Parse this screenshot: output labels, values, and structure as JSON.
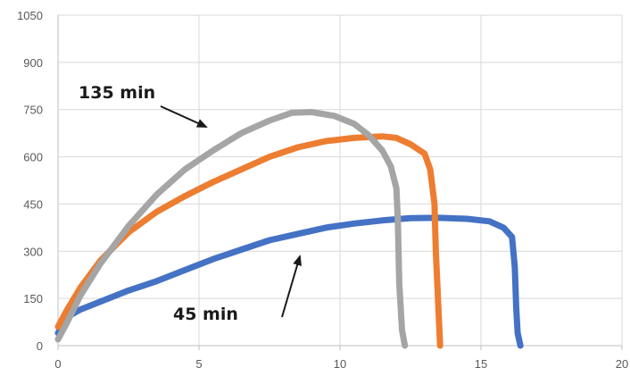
{
  "chart_data": {
    "type": "line",
    "title": "",
    "xlabel": "",
    "ylabel": "",
    "xlim": [
      0,
      20
    ],
    "ylim": [
      0,
      1050
    ],
    "x_ticks": [
      "0",
      "5",
      "10",
      "15",
      "20"
    ],
    "y_ticks": [
      "0",
      "150",
      "300",
      "450",
      "600",
      "750",
      "900",
      "1050"
    ],
    "grid": "vertical and horizontal",
    "legend": "none",
    "series": [
      {
        "color": "#4472c4",
        "points": [
          [
            0,
            40
          ],
          [
            0.3,
            90
          ],
          [
            0.8,
            115
          ],
          [
            1.5,
            140
          ],
          [
            2.5,
            175
          ],
          [
            3.5,
            205
          ],
          [
            4.5,
            240
          ],
          [
            5.5,
            275
          ],
          [
            6.5,
            305
          ],
          [
            7.5,
            335
          ],
          [
            8.5,
            355
          ],
          [
            9.5,
            375
          ],
          [
            10.5,
            388
          ],
          [
            11.5,
            398
          ],
          [
            12.5,
            405
          ],
          [
            13.5,
            406
          ],
          [
            14.5,
            403
          ],
          [
            15.3,
            395
          ],
          [
            15.8,
            375
          ],
          [
            16.1,
            345
          ],
          [
            16.2,
            250
          ],
          [
            16.25,
            120
          ],
          [
            16.3,
            40
          ],
          [
            16.4,
            0
          ]
        ]
      },
      {
        "color": "#ed7d31",
        "points": [
          [
            0,
            60
          ],
          [
            0.3,
            110
          ],
          [
            0.8,
            185
          ],
          [
            1.5,
            270
          ],
          [
            2.5,
            360
          ],
          [
            3.5,
            425
          ],
          [
            4.5,
            475
          ],
          [
            5.5,
            520
          ],
          [
            6.5,
            560
          ],
          [
            7.5,
            600
          ],
          [
            8.5,
            630
          ],
          [
            9.5,
            650
          ],
          [
            10.5,
            660
          ],
          [
            11.5,
            665
          ],
          [
            12,
            660
          ],
          [
            12.5,
            640
          ],
          [
            13,
            610
          ],
          [
            13.2,
            560
          ],
          [
            13.35,
            450
          ],
          [
            13.4,
            300
          ],
          [
            13.5,
            100
          ],
          [
            13.55,
            0
          ]
        ]
      },
      {
        "color": "#a5a5a5",
        "points": [
          [
            0,
            20
          ],
          [
            0.3,
            70
          ],
          [
            0.8,
            160
          ],
          [
            1.5,
            260
          ],
          [
            2.5,
            380
          ],
          [
            3.5,
            480
          ],
          [
            4.5,
            560
          ],
          [
            5.5,
            620
          ],
          [
            6.5,
            675
          ],
          [
            7.5,
            715
          ],
          [
            8.3,
            740
          ],
          [
            9,
            742
          ],
          [
            9.8,
            730
          ],
          [
            10.5,
            705
          ],
          [
            11,
            670
          ],
          [
            11.5,
            620
          ],
          [
            11.8,
            570
          ],
          [
            12,
            500
          ],
          [
            12.05,
            400
          ],
          [
            12.1,
            200
          ],
          [
            12.2,
            50
          ],
          [
            12.3,
            0
          ]
        ]
      }
    ],
    "annotations": [
      {
        "text": "135 min",
        "series": 2
      },
      {
        "text": "45 min",
        "series": 0
      }
    ]
  }
}
